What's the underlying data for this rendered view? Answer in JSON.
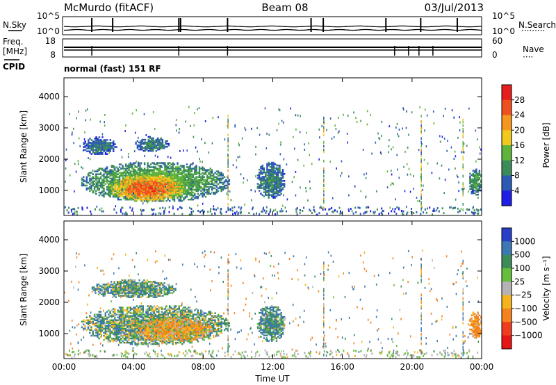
{
  "header": {
    "title": "McMurdo (fitACF)",
    "beam": "Beam 08",
    "date": "03/Jul/2013"
  },
  "top_panels": {
    "left_labels": {
      "nsky": "N.Sky",
      "freq_line1": "Freq.",
      "freq_line2": "[MHz]",
      "cpid": "CPID"
    },
    "right_labels": {
      "nsearch": "N.Search",
      "nave": "Nave"
    },
    "noise_ticks": [
      "10^5",
      "10^0"
    ],
    "freq_ticks": [
      "18",
      "8"
    ],
    "nave_ticks": [
      "60",
      "0"
    ],
    "cpid_text": "normal (fast) 151 RF"
  },
  "chart_data": [
    {
      "type": "heatmap",
      "title": "",
      "ylabel": "Slant Range [km]",
      "xlabel": "",
      "x_ticks": [
        "00:00",
        "04:00",
        "08:00",
        "12:00",
        "16:00",
        "20:00",
        "00:00"
      ],
      "y_ticks": [
        1000,
        2000,
        3000,
        4000
      ],
      "ylim": [
        200,
        4600
      ],
      "xlim_hours": [
        0,
        24
      ],
      "colorbar": {
        "label": "Power [dB]",
        "ticks": [
          "4",
          "8",
          "12",
          "16",
          "20",
          "24",
          "28"
        ],
        "colors": [
          "#1e1ee6",
          "#2d5ab4",
          "#3c8c5a",
          "#5fb43c",
          "#f0c81e",
          "#f5961e",
          "#f0501e",
          "#e61e1e"
        ]
      },
      "blobs": [
        {
          "t0": 0.9,
          "t1": 9.5,
          "r0": 600,
          "r1": 1900,
          "power": 14
        },
        {
          "t0": 2.5,
          "t1": 7.0,
          "r0": 600,
          "r1": 1500,
          "power": 26
        },
        {
          "t0": 1.0,
          "t1": 3.0,
          "r0": 2100,
          "r1": 2700,
          "power": 8
        },
        {
          "t0": 4.0,
          "t1": 6.0,
          "r0": 2200,
          "r1": 2700,
          "power": 10
        },
        {
          "t0": 11.0,
          "t1": 12.7,
          "r0": 700,
          "r1": 1900,
          "power": 10
        },
        {
          "t0": 23.2,
          "t1": 24.0,
          "r0": 800,
          "r1": 1700,
          "power": 12
        }
      ]
    },
    {
      "type": "heatmap",
      "title": "",
      "ylabel": "Slant Range [km]",
      "xlabel": "Time UT",
      "x_ticks": [
        "00:00",
        "04:00",
        "08:00",
        "12:00",
        "16:00",
        "20:00",
        "00:00"
      ],
      "y_ticks": [
        1000,
        2000,
        3000,
        4000
      ],
      "ylim": [
        200,
        4600
      ],
      "xlim_hours": [
        0,
        24
      ],
      "colorbar": {
        "label": "Velocity [m s⁻¹]",
        "ticks": [
          "1000",
          "500",
          "100",
          "25",
          "−25",
          "−100",
          "−500",
          "−1000"
        ],
        "colors": [
          "#2840c8",
          "#3c78b4",
          "#3c8c5a",
          "#64be3c",
          "#b4b4b4",
          "#f5b41e",
          "#f5821e",
          "#f03c1e",
          "#e61414"
        ]
      },
      "blobs": [
        {
          "t0": 0.9,
          "t1": 9.5,
          "r0": 600,
          "r1": 1900,
          "velocity": 50
        },
        {
          "t0": 4.0,
          "t1": 8.5,
          "r0": 700,
          "r1": 1500,
          "velocity": -80
        },
        {
          "t0": 1.5,
          "t1": 6.5,
          "r0": 2100,
          "r1": 2700,
          "velocity": 60
        },
        {
          "t0": 11.0,
          "t1": 12.7,
          "r0": 700,
          "r1": 1900,
          "velocity": 80
        },
        {
          "t0": 23.2,
          "t1": 24.0,
          "r0": 800,
          "r1": 1700,
          "velocity": -120
        }
      ]
    }
  ]
}
